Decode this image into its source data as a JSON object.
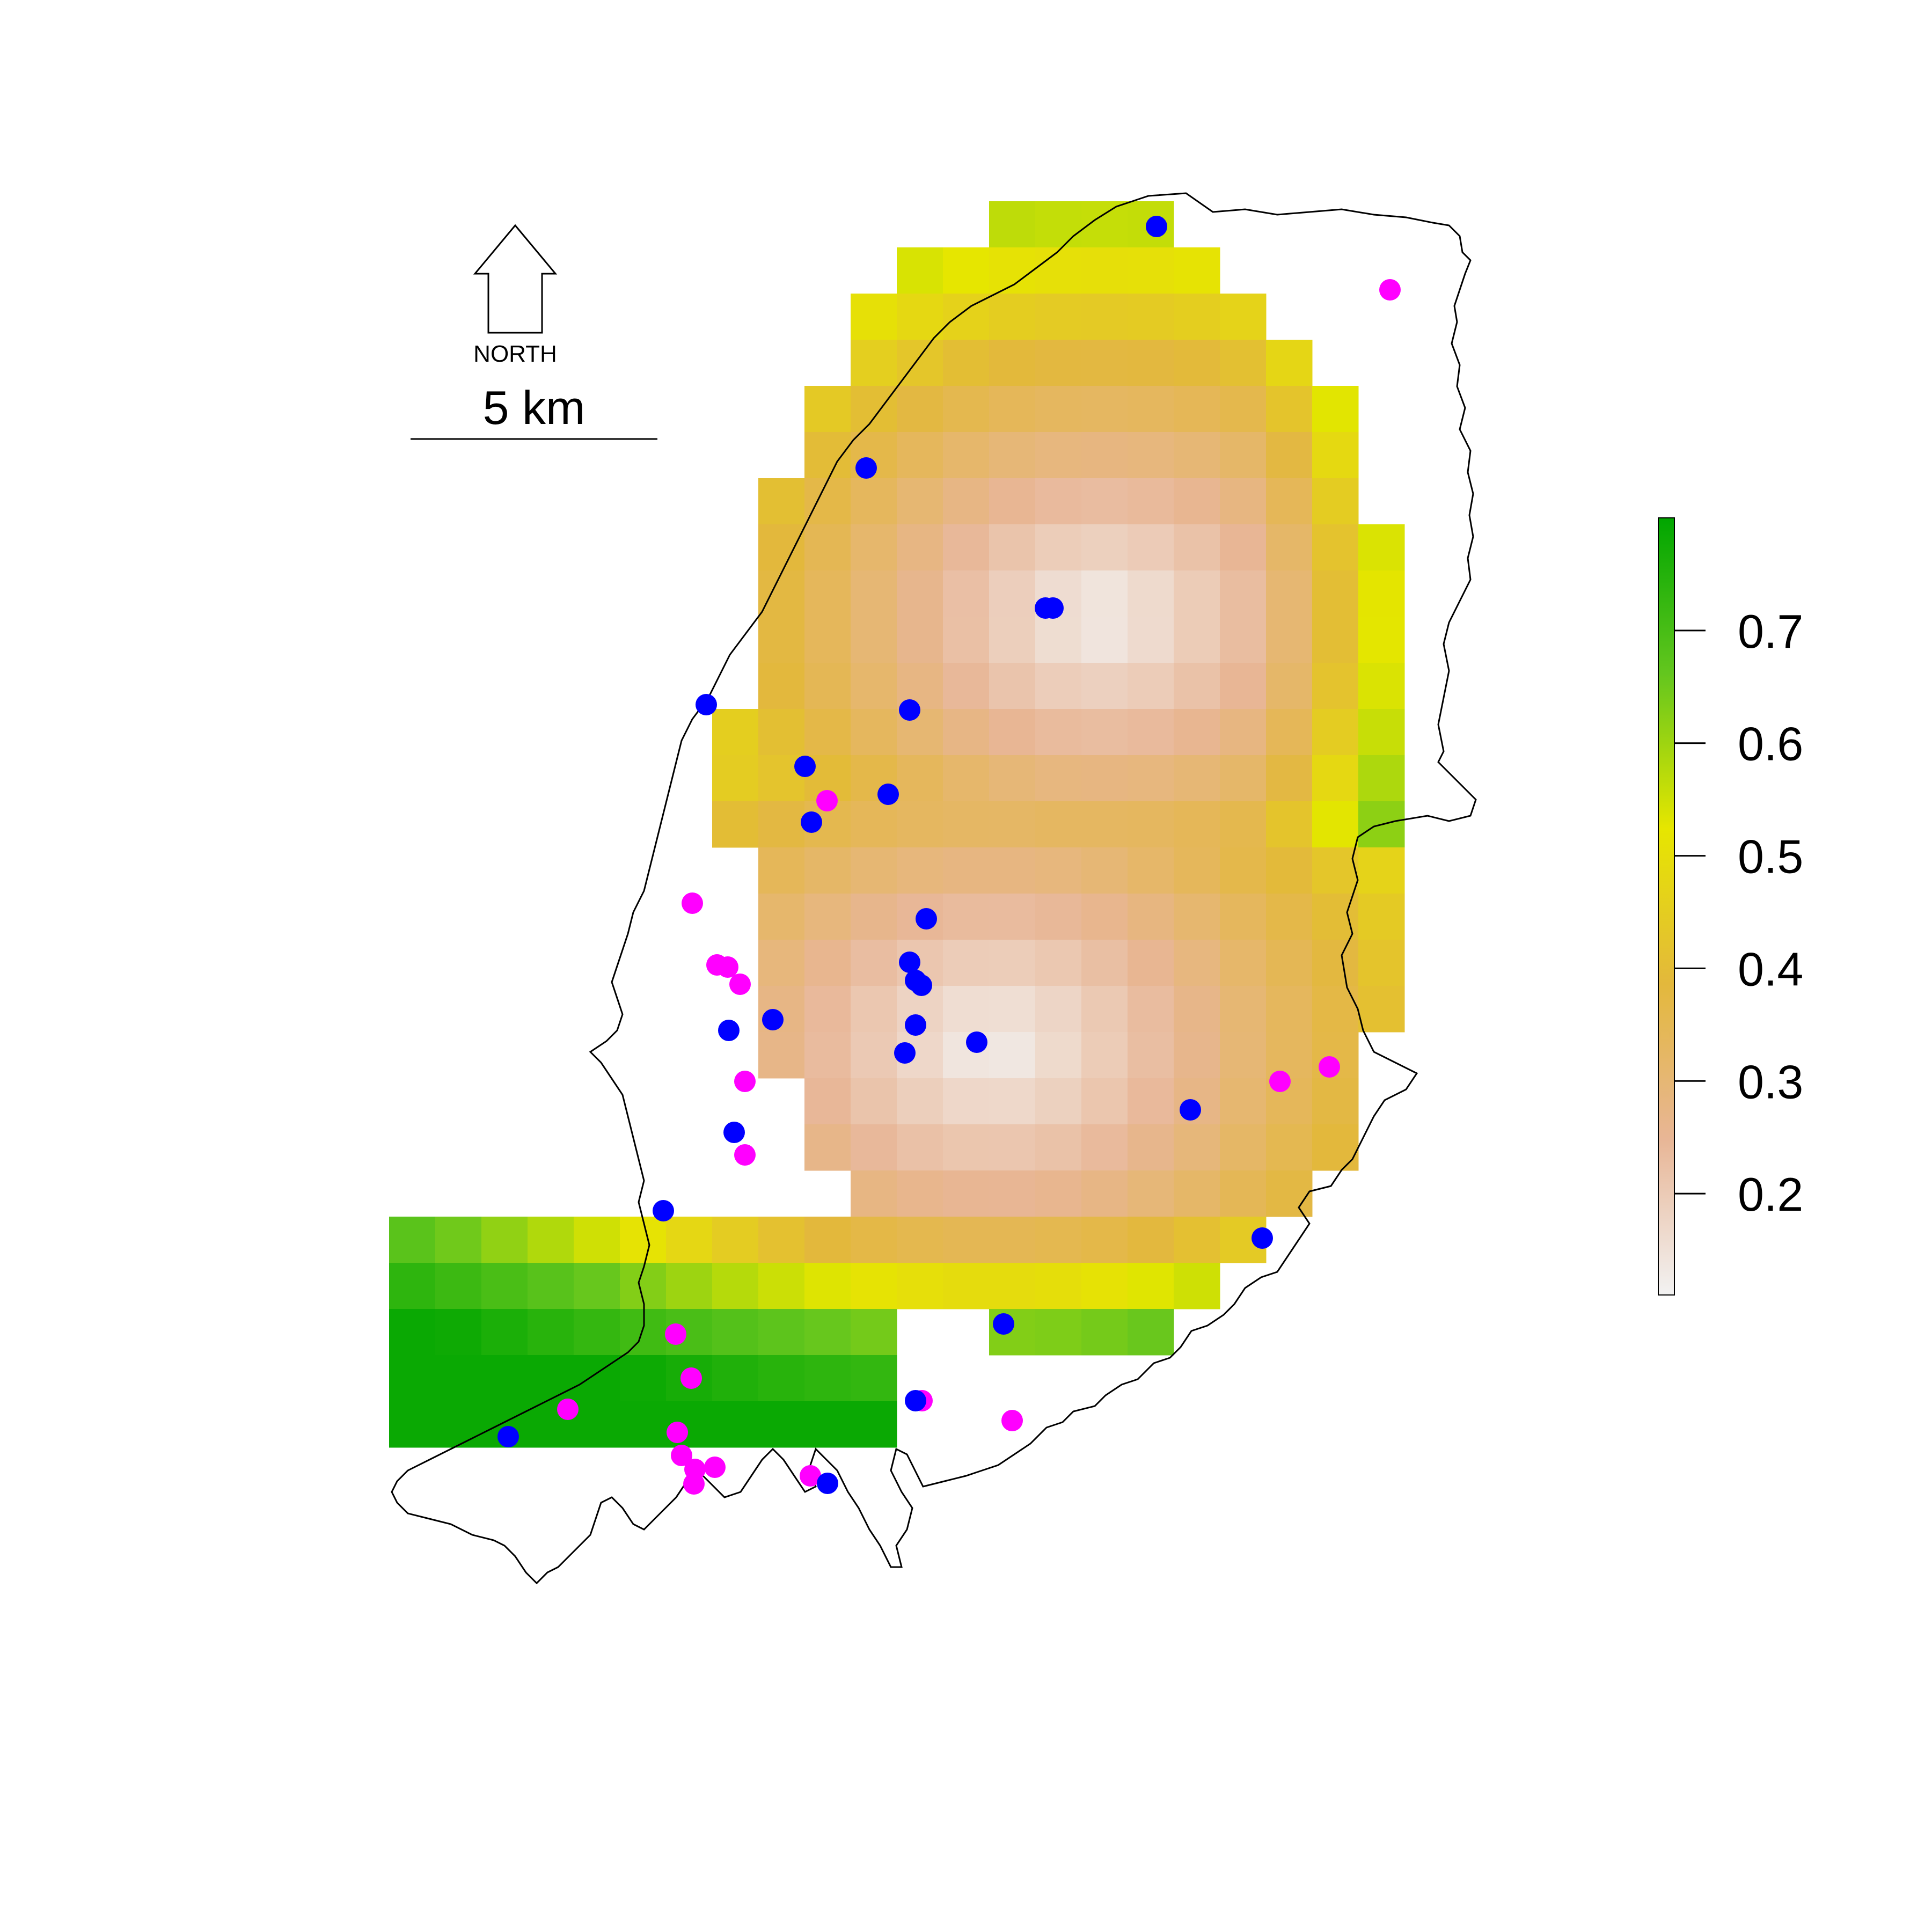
{
  "north_arrow": {
    "label": "NORTH"
  },
  "scale_bar": {
    "label": "5 km"
  },
  "legend": {
    "ticks": [
      "0.2",
      "0.3",
      "0.4",
      "0.5",
      "0.6",
      "0.7"
    ],
    "tick_values": [
      0.2,
      0.3,
      0.4,
      0.5,
      0.6,
      0.7
    ],
    "range": [
      0.11,
      0.8
    ],
    "colors": [
      "#f2f2f2",
      "#e8b696",
      "#e3b83c",
      "#e6e600",
      "#63c61e",
      "#00a600"
    ]
  },
  "raster": {
    "note_colors": {
      "high": "#00a600",
      "mid_high": "#8ed400",
      "mid": "#e6e600",
      "mid_low": "#e7b45a",
      "low": "#e8b696",
      "lowest": "#f2f2f2"
    }
  },
  "points": {
    "colors": {
      "blue": "#0000ff",
      "magenta": "#ff00ff"
    }
  }
}
